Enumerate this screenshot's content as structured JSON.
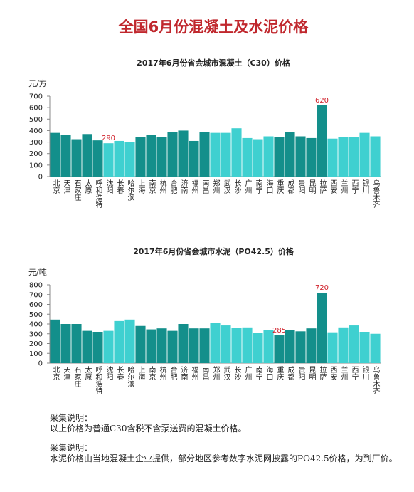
{
  "header": {
    "title": "全国6月份混凝土及水泥价格"
  },
  "chart_data": [
    {
      "type": "bar",
      "title": "2017年6月份省会城市混凝土（C30）价格",
      "y_label": "元/方",
      "categories": [
        "北京",
        "天津",
        "石家庄",
        "太原",
        "呼和浩特",
        "沈阳",
        "长春",
        "哈尔滨",
        "上海",
        "南京",
        "杭州",
        "合肥",
        "济南",
        "福州",
        "南昌",
        "郑州",
        "武汉",
        "长沙",
        "广州",
        "南宁",
        "海口",
        "重庆",
        "成都",
        "贵阳",
        "昆明",
        "拉萨",
        "西安",
        "兰州",
        "西宁",
        "银川",
        "乌鲁木齐"
      ],
      "values": [
        380,
        365,
        325,
        370,
        315,
        290,
        310,
        300,
        345,
        360,
        345,
        390,
        400,
        310,
        385,
        380,
        380,
        420,
        335,
        325,
        350,
        345,
        390,
        350,
        335,
        620,
        330,
        345,
        345,
        380,
        350
      ],
      "value_labels": [
        null,
        null,
        null,
        null,
        null,
        "290",
        null,
        null,
        null,
        null,
        null,
        null,
        null,
        null,
        null,
        null,
        null,
        null,
        null,
        null,
        null,
        null,
        null,
        null,
        null,
        "620",
        null,
        null,
        null,
        null,
        null
      ],
      "colors": [
        "#138f8b",
        "#138f8b",
        "#138f8b",
        "#138f8b",
        "#138f8b",
        "#3fd0d0",
        "#3fd0d0",
        "#3fd0d0",
        "#138f8b",
        "#138f8b",
        "#138f8b",
        "#138f8b",
        "#138f8b",
        "#138f8b",
        "#138f8b",
        "#3fd0d0",
        "#3fd0d0",
        "#3fd0d0",
        "#3fd0d0",
        "#3fd0d0",
        "#3fd0d0",
        "#138f8b",
        "#138f8b",
        "#138f8b",
        "#138f8b",
        "#138f8b",
        "#3fd0d0",
        "#3fd0d0",
        "#3fd0d0",
        "#3fd0d0",
        "#3fd0d0"
      ],
      "label_color": "#d0202a",
      "ylim": [
        0,
        700
      ],
      "yticks": [
        0,
        100,
        200,
        300,
        400,
        500,
        600,
        700
      ]
    },
    {
      "type": "bar",
      "title": "2017年6月份省会城市水泥（PO42.5）价格",
      "y_label": "元/吨",
      "categories": [
        "北京",
        "天津",
        "石家庄",
        "太原",
        "呼和浩特",
        "沈阳",
        "长春",
        "哈尔滨",
        "上海",
        "南京",
        "杭州",
        "合肥",
        "济南",
        "福州",
        "南昌",
        "郑州",
        "武汉",
        "长沙",
        "广州",
        "南宁",
        "海口",
        "重庆",
        "成都",
        "贵阳",
        "昆明",
        "拉萨",
        "西安",
        "兰州",
        "西宁",
        "银川",
        "乌鲁木齐"
      ],
      "values": [
        445,
        400,
        400,
        330,
        320,
        330,
        430,
        445,
        380,
        345,
        355,
        330,
        400,
        355,
        355,
        410,
        385,
        360,
        365,
        310,
        340,
        285,
        340,
        325,
        355,
        720,
        315,
        365,
        385,
        320,
        300
      ],
      "value_labels": [
        null,
        null,
        null,
        null,
        null,
        null,
        null,
        null,
        null,
        null,
        null,
        null,
        null,
        null,
        null,
        null,
        null,
        null,
        null,
        null,
        null,
        "285",
        null,
        null,
        null,
        "720",
        null,
        null,
        null,
        null,
        null
      ],
      "colors": [
        "#138f8b",
        "#138f8b",
        "#138f8b",
        "#138f8b",
        "#138f8b",
        "#3fd0d0",
        "#3fd0d0",
        "#3fd0d0",
        "#138f8b",
        "#138f8b",
        "#138f8b",
        "#138f8b",
        "#138f8b",
        "#138f8b",
        "#138f8b",
        "#3fd0d0",
        "#3fd0d0",
        "#3fd0d0",
        "#3fd0d0",
        "#3fd0d0",
        "#3fd0d0",
        "#138f8b",
        "#138f8b",
        "#138f8b",
        "#138f8b",
        "#138f8b",
        "#3fd0d0",
        "#3fd0d0",
        "#3fd0d0",
        "#3fd0d0",
        "#3fd0d0"
      ],
      "label_color": "#d0202a",
      "ylim": [
        0,
        800
      ],
      "yticks": [
        0,
        100,
        200,
        300,
        400,
        500,
        600,
        700,
        800
      ]
    }
  ],
  "notes": [
    {
      "heading": "采集说明：",
      "text": "以上价格为普通C30含税不含泵送费的混凝土价格。"
    },
    {
      "heading": "采集说明：",
      "text": "水泥价格由当地混凝土企业提供，部分地区参考数字水泥网披露的PO42.5价格，为到厂价。"
    }
  ]
}
